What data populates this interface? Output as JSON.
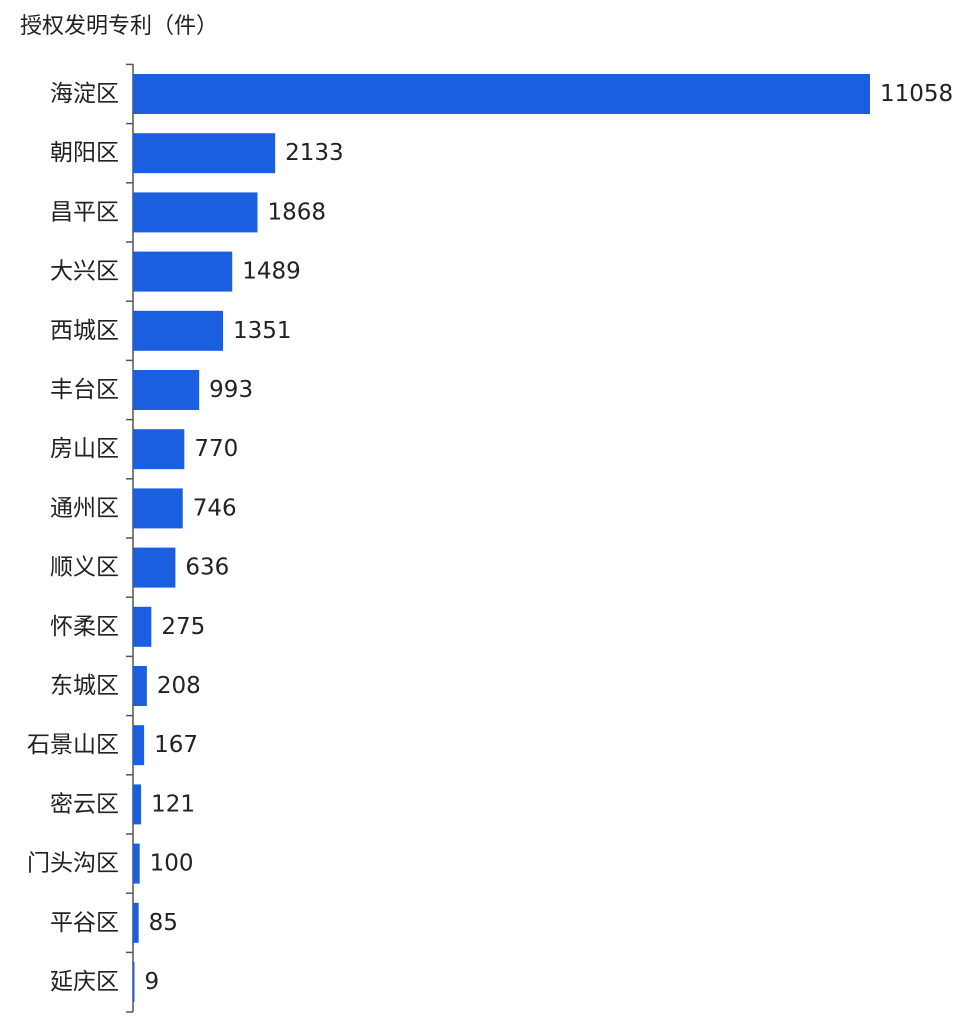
{
  "chart_data": {
    "type": "bar",
    "orientation": "horizontal",
    "title": "授权发明专利（件）",
    "categories": [
      "海淀区",
      "朝阳区",
      "昌平区",
      "大兴区",
      "西城区",
      "丰台区",
      "房山区",
      "通州区",
      "顺义区",
      "怀柔区",
      "东城区",
      "石景山区",
      "密云区",
      "门头沟区",
      "平谷区",
      "延庆区"
    ],
    "values": [
      11058,
      2133,
      1868,
      1489,
      1351,
      993,
      770,
      746,
      636,
      275,
      208,
      167,
      121,
      100,
      85,
      9
    ],
    "value_labels": [
      "11058",
      "2133",
      "1868",
      "1489",
      "1351",
      "993",
      "770",
      "746",
      "636",
      "275",
      "208",
      "167",
      "121",
      "100",
      "85",
      "9"
    ],
    "bar_color": "#1a5fe0",
    "xlim": [
      0,
      11058
    ],
    "grid": false,
    "legend": "none"
  }
}
